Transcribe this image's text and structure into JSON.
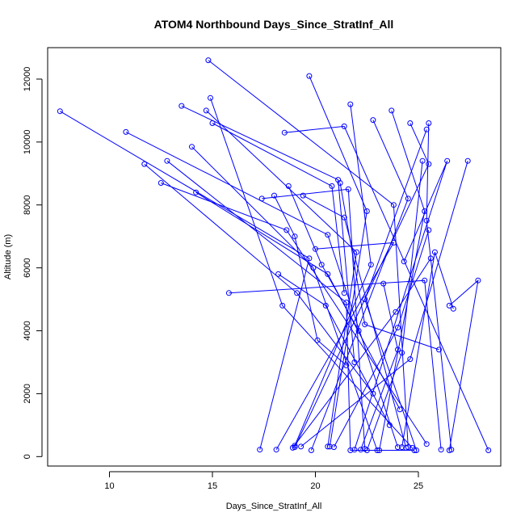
{
  "chart_data": {
    "type": "scatter",
    "title": "ATOM4 Northbound Days_Since_StratInf_All",
    "xlabel": "Days_Since_StratInf_All",
    "ylabel": "Altitude (m)",
    "xlim": [
      7.0,
      29.0
    ],
    "ylim": [
      -300,
      13000
    ],
    "xticks": [
      10,
      15,
      20,
      25
    ],
    "yticks": [
      0,
      2000,
      4000,
      6000,
      8000,
      10000,
      12000
    ],
    "series_color": "#0000ff",
    "grid": false,
    "legend": "none",
    "series": [
      {
        "x": [
          7.6,
          19.7,
          17.3
        ],
        "y": [
          10980,
          6300,
          220
        ]
      },
      {
        "x": [
          10.8,
          20.6,
          24.0
        ],
        "y": [
          10320,
          7050,
          300
        ]
      },
      {
        "x": [
          11.7,
          19.1,
          22.8
        ],
        "y": [
          9300,
          5200,
          2000
        ]
      },
      {
        "x": [
          12.5,
          18.6,
          25.4
        ],
        "y": [
          8700,
          7200,
          400
        ]
      },
      {
        "x": [
          12.8,
          21.5,
          21.7,
          24.8
        ],
        "y": [
          9400,
          4900,
          200,
          200
        ]
      },
      {
        "x": [
          13.5,
          21.1,
          21.9
        ],
        "y": [
          11150,
          8800,
          3000
        ]
      },
      {
        "x": [
          14.0,
          19.9,
          23.0
        ],
        "y": [
          9850,
          6000,
          200
        ]
      },
      {
        "x": [
          14.2,
          20.6,
          24.1
        ],
        "y": [
          8400,
          5800,
          1500
        ]
      },
      {
        "x": [
          14.7,
          22.0,
          20.6
        ],
        "y": [
          11000,
          6500,
          320
        ]
      },
      {
        "x": [
          14.8,
          23.8,
          24.5
        ],
        "y": [
          12600,
          8000,
          300
        ]
      },
      {
        "x": [
          14.9,
          18.4,
          24.7
        ],
        "y": [
          11400,
          4800,
          280
        ]
      },
      {
        "x": [
          15.0,
          20.8,
          21.4
        ],
        "y": [
          10600,
          8600,
          5200
        ]
      },
      {
        "x": [
          15.8,
          25.3,
          26.1
        ],
        "y": [
          5200,
          5600,
          220
        ]
      },
      {
        "x": [
          17.4,
          21.6,
          22.4
        ],
        "y": [
          8200,
          8500,
          250
        ]
      },
      {
        "x": [
          18.2,
          20.5,
          23.6
        ],
        "y": [
          5800,
          4800,
          1000
        ]
      },
      {
        "x": [
          18.5,
          21.4,
          28.4
        ],
        "y": [
          10300,
          10500,
          200
        ]
      },
      {
        "x": [
          19.4,
          21.4,
          24.4
        ],
        "y": [
          8300,
          7600,
          280
        ]
      },
      {
        "x": [
          19.7,
          22.5,
          20.7
        ],
        "y": [
          12100,
          7800,
          320
        ]
      },
      {
        "x": [
          20.0,
          23.8,
          18.1
        ],
        "y": [
          6600,
          6800,
          220
        ]
      },
      {
        "x": [
          21.2,
          22.4,
          26.0
        ],
        "y": [
          8700,
          4200,
          3400
        ]
      },
      {
        "x": [
          21.7,
          22.7,
          19.0
        ],
        "y": [
          11200,
          6100,
          350
        ]
      },
      {
        "x": [
          22.8,
          24.5,
          19.8
        ],
        "y": [
          10700,
          8200,
          200
        ]
      },
      {
        "x": [
          23.3,
          24.0,
          22.2
        ],
        "y": [
          5500,
          3400,
          220
        ]
      },
      {
        "x": [
          23.7,
          25.3,
          23.1
        ],
        "y": [
          11000,
          7800,
          200
        ]
      },
      {
        "x": [
          24.3,
          26.4,
          21.9
        ],
        "y": [
          6200,
          9400,
          220
        ]
      },
      {
        "x": [
          24.6,
          25.5,
          19.0
        ],
        "y": [
          10600,
          9300,
          300
        ]
      },
      {
        "x": [
          25.2,
          24.2,
          22.5
        ],
        "y": [
          9400,
          3300,
          200
        ]
      },
      {
        "x": [
          25.4,
          22.4,
          24.9
        ],
        "y": [
          10400,
          5000,
          200
        ]
      },
      {
        "x": [
          25.5,
          25.4,
          26.6
        ],
        "y": [
          10600,
          7500,
          220
        ]
      },
      {
        "x": [
          25.5,
          24.0,
          20.9
        ],
        "y": [
          7200,
          4100,
          300
        ]
      },
      {
        "x": [
          25.6,
          23.9,
          18.9
        ],
        "y": [
          6300,
          4600,
          280
        ]
      },
      {
        "x": [
          26.5,
          27.9,
          26.5
        ],
        "y": [
          4800,
          5600,
          200
        ]
      },
      {
        "x": [
          27.4,
          24.6,
          19.3
        ],
        "y": [
          9400,
          3100,
          320
        ]
      },
      {
        "x": [
          26.7,
          25.8,
          24.2
        ],
        "y": [
          4700,
          6500,
          300
        ]
      },
      {
        "x": [
          18.0,
          19.0,
          20.1,
          21.5
        ],
        "y": [
          8300,
          7000,
          3700,
          2900
        ]
      },
      {
        "x": [
          18.7,
          20.3,
          22.1
        ],
        "y": [
          8600,
          6100,
          4000
        ]
      }
    ]
  }
}
